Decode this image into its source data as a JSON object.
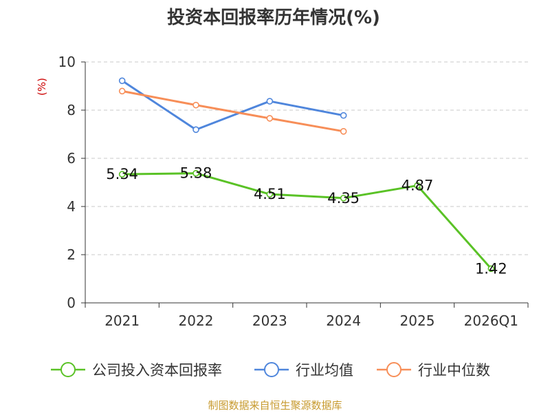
{
  "chart_data": {
    "type": "line",
    "title": "投资本回报率历年情况(%)",
    "unit_label": "(%)",
    "categories": [
      "2021",
      "2022",
      "2023",
      "2024",
      "2025",
      "2026Q1"
    ],
    "ylim": [
      0,
      10
    ],
    "yticks": [
      "0",
      "2",
      "4",
      "6",
      "8",
      "10"
    ],
    "grid": true,
    "legend_position": "bottom",
    "series": [
      {
        "name": "公司投入资本回报率",
        "color": "#5ac226",
        "values": [
          5.34,
          5.38,
          4.51,
          4.35,
          4.87,
          1.42
        ],
        "labels": [
          "5.34",
          "5.38",
          "4.51",
          "4.35",
          "4.87",
          "1.42"
        ]
      },
      {
        "name": "行业均值",
        "color": "#4f86dc",
        "values": [
          9.22,
          7.19,
          8.37,
          7.78,
          null,
          null
        ]
      },
      {
        "name": "行业中位数",
        "color": "#f78e58",
        "values": [
          8.79,
          8.21,
          7.66,
          7.12,
          null,
          null
        ]
      }
    ]
  },
  "source": "制图数据来自恒生聚源数据库"
}
